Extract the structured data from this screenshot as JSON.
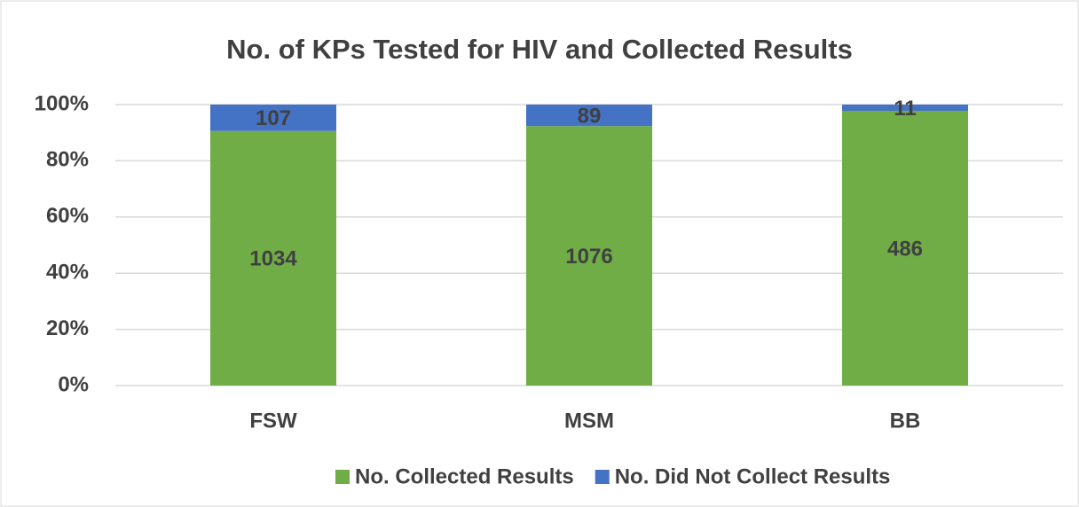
{
  "chart_data": {
    "type": "bar_100",
    "title": "No. of KPs Tested for HIV and Collected Results",
    "categories": [
      "FSW",
      "MSM",
      "BB"
    ],
    "series": [
      {
        "name": "No. Collected Results",
        "color": "#70ad47",
        "values": [
          1034,
          1076,
          486
        ]
      },
      {
        "name": "No. Did Not Collect Results",
        "color": "#4472c4",
        "values": [
          107,
          89,
          11
        ]
      }
    ],
    "ylim": [
      0,
      100
    ],
    "yticks": [
      {
        "value": 0,
        "label": "0%"
      },
      {
        "value": 20,
        "label": "20%"
      },
      {
        "value": 40,
        "label": "40%"
      },
      {
        "value": 60,
        "label": "60%"
      },
      {
        "value": 80,
        "label": "80%"
      },
      {
        "value": 100,
        "label": "100%"
      }
    ],
    "grid": true,
    "legend": "bottom"
  }
}
